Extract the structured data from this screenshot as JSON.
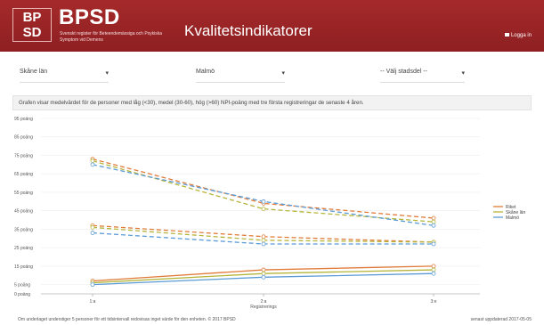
{
  "header": {
    "logo_top": "BP",
    "logo_bottom": "SD",
    "brand": "BPSD",
    "brand_sub": "Svenskt register för Beteendemässiga och Psykiska Symptom vid Demens",
    "page_title": "Kvalitetsindikatorer",
    "login_label": "Logga in"
  },
  "filters": {
    "region": "Skåne län",
    "city": "Malmö",
    "district": "-- Välj stadsdel --",
    "caret": "▾"
  },
  "info_text": "Grafen visar medelvärdet för de personer med låg (<30), medel (30-60), hög (>60) NPI-poäng med tre första registreringar de senaste 4 åren.",
  "chart_data": {
    "type": "line",
    "categories": [
      "1:a",
      "2:a",
      "3:e"
    ],
    "x_axis_label": "Registrerings",
    "y_tick_labels": [
      "0 poäng",
      "5 poäng",
      "15 poäng",
      "25 poäng",
      "35 poäng",
      "45 poäng",
      "55 poäng",
      "65 poäng",
      "75 poäng",
      "85 poäng",
      "95 poäng"
    ],
    "y_tick_values": [
      0,
      5,
      15,
      25,
      35,
      45,
      55,
      65,
      75,
      85,
      95
    ],
    "ylim": [
      0,
      95
    ],
    "grid": true,
    "legend_position": "right",
    "series": [
      {
        "name": "Riket",
        "group": "high",
        "values": [
          73,
          49,
          41
        ],
        "color": "#e07b39",
        "dash": true
      },
      {
        "name": "Skåne län",
        "group": "high",
        "values": [
          72,
          46,
          39
        ],
        "color": "#b5b53a",
        "dash": true
      },
      {
        "name": "Malmö",
        "group": "high",
        "values": [
          70,
          50,
          37
        ],
        "color": "#5b9bd5",
        "dash": true
      },
      {
        "name": "Riket",
        "group": "mid",
        "values": [
          37,
          31,
          28
        ],
        "color": "#e07b39",
        "dash": true
      },
      {
        "name": "Skåne län",
        "group": "mid",
        "values": [
          36,
          29,
          28
        ],
        "color": "#b5b53a",
        "dash": true
      },
      {
        "name": "Malmö",
        "group": "mid",
        "values": [
          33,
          27,
          27
        ],
        "color": "#5b9bd5",
        "dash": true
      },
      {
        "name": "Riket",
        "group": "low",
        "values": [
          7,
          13,
          15
        ],
        "color": "#e07b39",
        "dash": false
      },
      {
        "name": "Skåne län",
        "group": "low",
        "values": [
          6,
          11,
          13
        ],
        "color": "#b5b53a",
        "dash": false
      },
      {
        "name": "Malmö",
        "group": "low",
        "values": [
          5,
          9,
          11
        ],
        "color": "#5b9bd5",
        "dash": false
      }
    ],
    "legend": [
      {
        "name": "Riket",
        "color": "#e07b39"
      },
      {
        "name": "Skåne län",
        "color": "#b5b53a"
      },
      {
        "name": "Malmö",
        "color": "#5b9bd5"
      }
    ]
  },
  "footer": {
    "left": "Om underlaget understiger 5 personer för ett tidsintervall redovisas inget värde för den enheten. © 2017 BPSD",
    "right": "senast uppdaterad 2017-05-05"
  }
}
